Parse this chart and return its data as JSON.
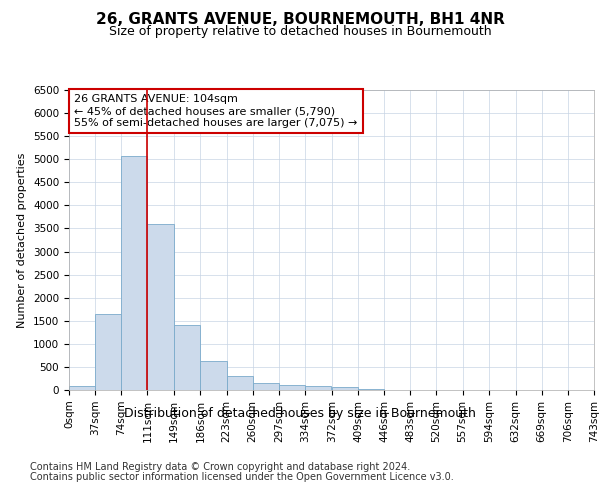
{
  "title1": "26, GRANTS AVENUE, BOURNEMOUTH, BH1 4NR",
  "title2": "Size of property relative to detached houses in Bournemouth",
  "xlabel": "Distribution of detached houses by size in Bournemouth",
  "ylabel": "Number of detached properties",
  "footnote1": "Contains HM Land Registry data © Crown copyright and database right 2024.",
  "footnote2": "Contains public sector information licensed under the Open Government Licence v3.0.",
  "bin_edges": [
    0,
    37,
    74,
    111,
    149,
    186,
    223,
    260,
    297,
    334,
    372,
    409,
    446,
    483,
    520,
    557,
    594,
    632,
    669,
    706,
    743
  ],
  "bar_heights": [
    80,
    1650,
    5060,
    3600,
    1400,
    620,
    300,
    150,
    100,
    80,
    60,
    20,
    10,
    0,
    0,
    0,
    0,
    0,
    0,
    0
  ],
  "bar_color": "#ccdaeb",
  "bar_edge_color": "#7aaacb",
  "vline_x": 111,
  "vline_color": "#cc0000",
  "ylim": [
    0,
    6500
  ],
  "xlim": [
    0,
    743
  ],
  "annotation_text": "26 GRANTS AVENUE: 104sqm\n← 45% of detached houses are smaller (5,790)\n55% of semi-detached houses are larger (7,075) →",
  "annotation_box_color": "#cc0000",
  "grid_color": "#c8d4e4",
  "bg_color": "#ffffff",
  "title1_fontsize": 11,
  "title2_fontsize": 9,
  "xlabel_fontsize": 9,
  "ylabel_fontsize": 8,
  "annotation_fontsize": 8,
  "tick_fontsize": 7.5,
  "footnote_fontsize": 7,
  "yticks": [
    0,
    500,
    1000,
    1500,
    2000,
    2500,
    3000,
    3500,
    4000,
    4500,
    5000,
    5500,
    6000,
    6500
  ]
}
